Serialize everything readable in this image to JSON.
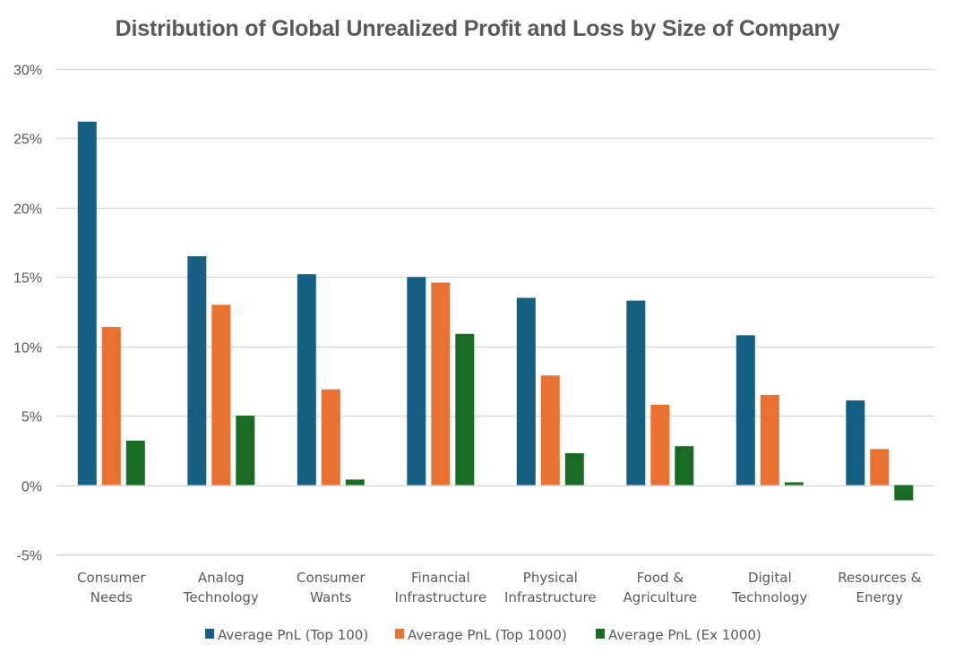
{
  "chart_data": {
    "type": "bar",
    "title": "Distribution  of Global Unrealized Profit and Loss by Size of Company",
    "xlabel": "",
    "ylabel": "",
    "ylim": [
      -5,
      30
    ],
    "yticks": [
      -5,
      0,
      5,
      10,
      15,
      20,
      25,
      30
    ],
    "ytick_labels": [
      "-5%",
      "0%",
      "5%",
      "10%",
      "15%",
      "20%",
      "25%",
      "30%"
    ],
    "grid": true,
    "legend_position": "bottom",
    "categories": [
      [
        "Consumer",
        "Needs"
      ],
      [
        "Analog",
        "Technology"
      ],
      [
        "Consumer",
        "Wants"
      ],
      [
        "Financial",
        "Infrastructure"
      ],
      [
        "Physical",
        "Infrastructure"
      ],
      [
        "Food &",
        "Agriculture"
      ],
      [
        "Digital",
        "Technology"
      ],
      [
        "Resources &",
        "Energy"
      ]
    ],
    "series": [
      {
        "name": "Average PnL (Top 100)",
        "color": "#156082",
        "values": [
          26.2,
          16.5,
          15.2,
          15.0,
          13.5,
          13.3,
          10.8,
          6.1
        ]
      },
      {
        "name": "Average PnL (Top 1000)",
        "color": "#E97132",
        "values": [
          11.4,
          13.0,
          6.9,
          14.6,
          7.9,
          5.8,
          6.5,
          2.6
        ]
      },
      {
        "name": "Average PnL (Ex 1000)",
        "color": "#196B24",
        "values": [
          3.2,
          5.0,
          0.4,
          10.9,
          2.3,
          2.8,
          0.2,
          -1.1
        ]
      }
    ]
  }
}
